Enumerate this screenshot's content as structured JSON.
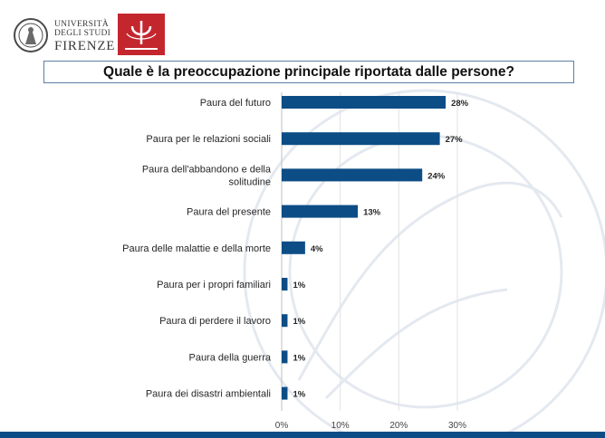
{
  "header": {
    "university": {
      "line1": "UNIVERSITÀ",
      "line2": "DEGLI STUDI",
      "line3": "FIRENZE"
    },
    "logo_red_name": "psychology-logo"
  },
  "colors": {
    "bar": "#0d4d86",
    "title_border": "#5b7fa6",
    "logo_red": "#c4262e",
    "bottom_bar": "#0d4d86"
  },
  "chart_data": {
    "type": "bar",
    "orientation": "horizontal",
    "title": "Quale è la preoccupazione principale riportata dalle persone?",
    "categories": [
      [
        "Paura del futuro"
      ],
      [
        "Paura per le relazioni sociali"
      ],
      [
        "Paura dell'abbandono e della",
        "solitudine"
      ],
      [
        "Paura del presente"
      ],
      [
        "Paura delle malattie e della morte"
      ],
      [
        "Paura per i propri familiari"
      ],
      [
        "Paura di perdere il lavoro"
      ],
      [
        "Paura della guerra"
      ],
      [
        "Paura dei disastri ambientali"
      ]
    ],
    "values": [
      28,
      27,
      24,
      13,
      4,
      1,
      1,
      1,
      1
    ],
    "data_labels": [
      "28%",
      "27%",
      "24%",
      "13%",
      "4%",
      "1%",
      "1%",
      "1%",
      "1%"
    ],
    "x_ticks": [
      0,
      10,
      20,
      30
    ],
    "x_tick_labels": [
      "0%",
      "10%",
      "20%",
      "30%"
    ],
    "xlim": [
      0,
      30
    ],
    "grid": true
  }
}
